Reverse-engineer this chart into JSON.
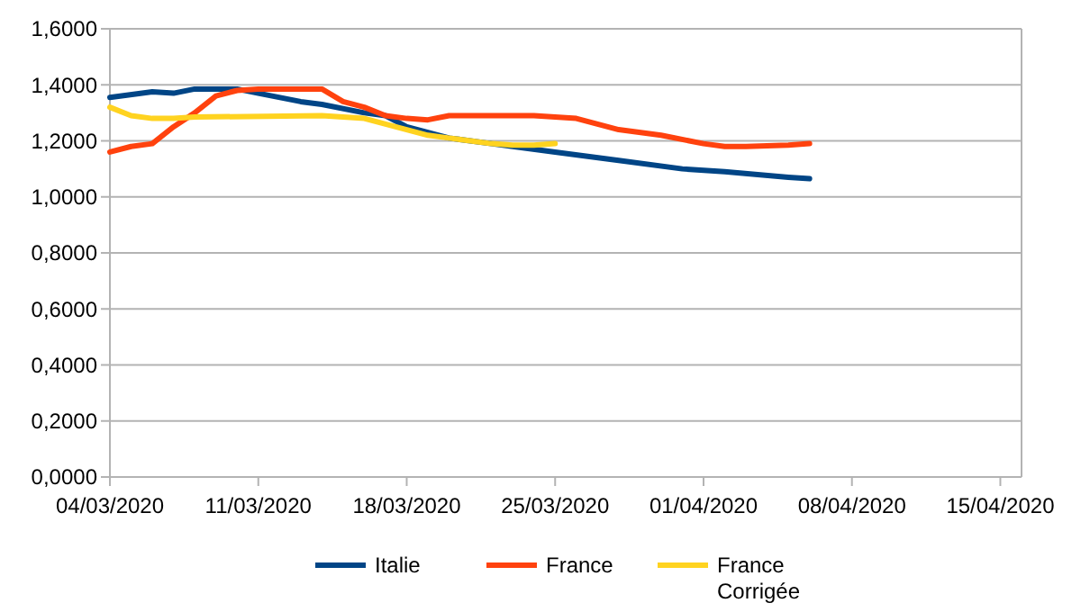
{
  "chart_data": {
    "type": "line",
    "grid": "y",
    "legend": "bottom",
    "marker": "none",
    "line_style": "solid",
    "xlim": [
      "2020-03-04",
      "2020-04-16"
    ],
    "xticks": [
      {
        "value": "2020-03-04",
        "label": "04/03/2020"
      },
      {
        "value": "2020-03-11",
        "label": "11/03/2020"
      },
      {
        "value": "2020-03-18",
        "label": "18/03/2020"
      },
      {
        "value": "2020-03-25",
        "label": "25/03/2020"
      },
      {
        "value": "2020-04-01",
        "label": "01/04/2020"
      },
      {
        "value": "2020-04-08",
        "label": "08/04/2020"
      },
      {
        "value": "2020-04-15",
        "label": "15/04/2020"
      }
    ],
    "ylim": [
      0,
      1.6
    ],
    "yticks": [
      {
        "value": 0,
        "label": "0,0000"
      },
      {
        "value": 0.2,
        "label": "0,2000"
      },
      {
        "value": 0.4,
        "label": "0,4000"
      },
      {
        "value": 0.6,
        "label": "0,6000"
      },
      {
        "value": 0.8,
        "label": "0,8000"
      },
      {
        "value": 1,
        "label": "1,0000"
      },
      {
        "value": 1.2,
        "label": "1,2000"
      },
      {
        "value": 1.4,
        "label": "1,4000"
      },
      {
        "value": 1.6,
        "label": "1,6000"
      }
    ],
    "series": [
      {
        "name": "Italie",
        "color": "#004586",
        "x": [
          "2020-03-04",
          "2020-03-06",
          "2020-03-07",
          "2020-03-08",
          "2020-03-10",
          "2020-03-11",
          "2020-03-13",
          "2020-03-14",
          "2020-03-16",
          "2020-03-17",
          "2020-03-18",
          "2020-03-19",
          "2020-03-20",
          "2020-03-22",
          "2020-03-23",
          "2020-03-25",
          "2020-03-28",
          "2020-03-31",
          "2020-04-02",
          "2020-04-05",
          "2020-04-06"
        ],
        "values": [
          1.355,
          1.375,
          1.37,
          1.385,
          1.385,
          1.37,
          1.34,
          1.33,
          1.3,
          1.29,
          1.25,
          1.23,
          1.21,
          1.19,
          1.18,
          1.16,
          1.13,
          1.1,
          1.09,
          1.07,
          1.065
        ]
      },
      {
        "name": "France",
        "color": "#ff420e",
        "x": [
          "2020-03-04",
          "2020-03-05",
          "2020-03-06",
          "2020-03-07",
          "2020-03-08",
          "2020-03-09",
          "2020-03-10",
          "2020-03-11",
          "2020-03-13",
          "2020-03-14",
          "2020-03-15",
          "2020-03-16",
          "2020-03-17",
          "2020-03-18",
          "2020-03-19",
          "2020-03-20",
          "2020-03-24",
          "2020-03-25",
          "2020-03-26",
          "2020-03-27",
          "2020-03-28",
          "2020-03-30",
          "2020-04-01",
          "2020-04-02",
          "2020-04-03",
          "2020-04-05",
          "2020-04-06"
        ],
        "values": [
          1.16,
          1.18,
          1.19,
          1.25,
          1.3,
          1.36,
          1.38,
          1.385,
          1.385,
          1.385,
          1.34,
          1.32,
          1.29,
          1.28,
          1.275,
          1.29,
          1.29,
          1.285,
          1.28,
          1.26,
          1.24,
          1.22,
          1.19,
          1.18,
          1.18,
          1.185,
          1.19
        ]
      },
      {
        "name": "France Corrigée",
        "color": "#ffd320",
        "x": [
          "2020-03-04",
          "2020-03-05",
          "2020-03-06",
          "2020-03-07",
          "2020-03-08",
          "2020-03-14",
          "2020-03-16",
          "2020-03-17",
          "2020-03-18",
          "2020-03-19",
          "2020-03-20",
          "2020-03-21",
          "2020-03-22",
          "2020-03-23",
          "2020-03-24",
          "2020-03-25"
        ],
        "values": [
          1.32,
          1.29,
          1.28,
          1.28,
          1.285,
          1.29,
          1.28,
          1.26,
          1.24,
          1.22,
          1.21,
          1.2,
          1.19,
          1.185,
          1.185,
          1.19
        ]
      }
    ]
  }
}
